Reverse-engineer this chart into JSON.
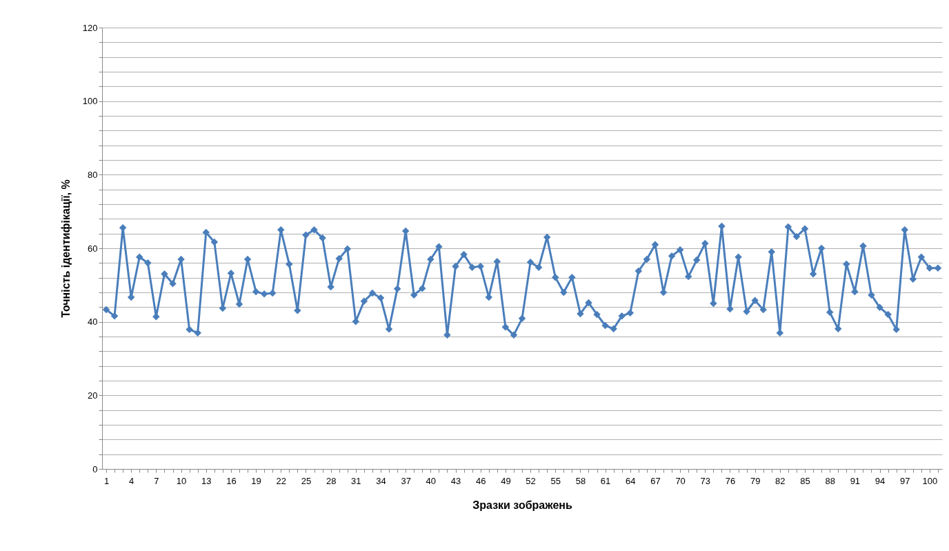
{
  "chart_data": {
    "type": "line",
    "xlabel": "Зразки зображень",
    "ylabel": "Точність ідентифікації, %",
    "categories": [
      "1",
      null,
      null,
      "4",
      null,
      null,
      "7",
      null,
      null,
      "10",
      null,
      null,
      "13",
      null,
      null,
      "16",
      null,
      null,
      "19",
      null,
      null,
      "22",
      null,
      null,
      "25",
      null,
      null,
      "28",
      null,
      null,
      "31",
      null,
      null,
      "34",
      null,
      null,
      "37",
      null,
      null,
      "40",
      null,
      null,
      "43",
      null,
      null,
      "46",
      null,
      null,
      "49",
      null,
      null,
      "52",
      null,
      null,
      "55",
      null,
      null,
      "58",
      null,
      null,
      "61",
      null,
      null,
      "64",
      null,
      null,
      "67",
      null,
      null,
      "70",
      null,
      null,
      "73",
      null,
      null,
      "76",
      null,
      null,
      "79",
      null,
      null,
      "82",
      null,
      null,
      "85",
      null,
      null,
      "88",
      null,
      null,
      "91",
      null,
      null,
      "94",
      null,
      null,
      "97",
      null,
      null,
      "100",
      null
    ],
    "series": [
      {
        "color": "#4a7ebb",
        "values": [
          43.3,
          41.6,
          65.6,
          46.7,
          57.6,
          56,
          41.4,
          53,
          50.4,
          57,
          37.9,
          37,
          64.3,
          61.7,
          43.7,
          53.2,
          44.8,
          57,
          48.2,
          47.6,
          47.8,
          65,
          55.7,
          43.1,
          63.6,
          65,
          62.8,
          49.5,
          57.2,
          59.8,
          40.1,
          45.6,
          47.8,
          46.5,
          38,
          49,
          64.7,
          47.3,
          49.1,
          57,
          60.4,
          36.4,
          55.1,
          58.3,
          54.8,
          55.1,
          46.7,
          56.4,
          38.6,
          36.4,
          40.9,
          56.2,
          54.8,
          63,
          52.1,
          48,
          52.1,
          42.2,
          45.2,
          42,
          39,
          38.1,
          41.6,
          42.4,
          53.8,
          57,
          61,
          48,
          57.9,
          59.6,
          52.3,
          56.8,
          61.3,
          45,
          66,
          43.5,
          57.6,
          42.8,
          45.8,
          43.3,
          59,
          37,
          65.8,
          63.2,
          65.3,
          53,
          60,
          42.6,
          38.1,
          55.7,
          48.2,
          60.6,
          47.3,
          43.9,
          42,
          37.9,
          65,
          51.6,
          57.6,
          54.6,
          54.6
        ]
      }
    ],
    "ylim": [
      0,
      120
    ],
    "yticks": [
      0,
      {
        "value": 4,
        "label": null
      },
      {
        "value": 8,
        "label": null
      },
      {
        "value": 12,
        "label": null
      },
      {
        "value": 16,
        "label": null
      },
      20,
      {
        "value": 24,
        "label": null
      },
      {
        "value": 28,
        "label": null
      },
      {
        "value": 32,
        "label": null
      },
      {
        "value": 36,
        "label": null
      },
      40,
      {
        "value": 44,
        "label": null
      },
      {
        "value": 48,
        "label": null
      },
      {
        "value": 52,
        "label": null
      },
      {
        "value": 56,
        "label": null
      },
      60,
      {
        "value": 64,
        "label": null
      },
      {
        "value": 68,
        "label": null
      },
      {
        "value": 72,
        "label": null
      },
      {
        "value": 76,
        "label": null
      },
      80,
      {
        "value": 84,
        "label": null
      },
      {
        "value": 88,
        "label": null
      },
      {
        "value": 92,
        "label": null
      },
      {
        "value": 96,
        "label": null
      },
      100,
      {
        "value": 104,
        "label": null
      },
      {
        "value": 108,
        "label": null
      },
      {
        "value": 112,
        "label": null
      },
      {
        "value": 116,
        "label": null
      },
      120
    ],
    "grid": true,
    "marker": "diamond",
    "line_style": "solid"
  }
}
